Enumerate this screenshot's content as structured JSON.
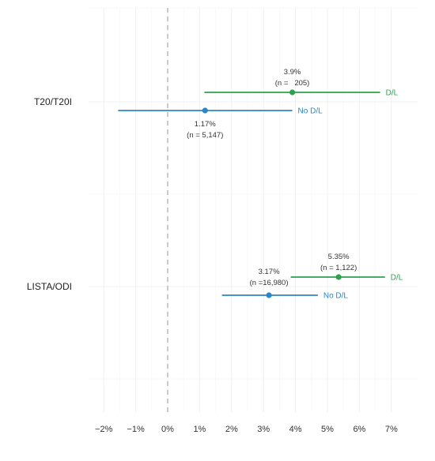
{
  "chart_data": {
    "type": "forest",
    "title": "",
    "xlabel": "",
    "ylabel": "",
    "xlim": [
      -0.025,
      0.079
    ],
    "x_ticks": [
      -0.02,
      -0.01,
      0,
      0.01,
      0.02,
      0.03,
      0.04,
      0.05,
      0.06,
      0.07
    ],
    "x_tick_labels": [
      "−2%",
      "−1%",
      "0%",
      "1%",
      "2%",
      "3%",
      "4%",
      "5%",
      "6%",
      "7%"
    ],
    "reference_line": 0,
    "grid": true,
    "categories": [
      "T20/T20I",
      "LISTA/ODI"
    ],
    "series": [
      {
        "name": "D/L",
        "color": "#2ca24d",
        "points": [
          {
            "category": "T20/T20I",
            "estimate": 0.039,
            "low": 0.0115,
            "high": 0.0665,
            "label_pct": "3.9%",
            "label_n": "(n =   205)"
          },
          {
            "category": "LISTA/ODI",
            "estimate": 0.0535,
            "low": 0.0385,
            "high": 0.068,
            "label_pct": "5.35%",
            "label_n": "(n = 1,122)"
          }
        ]
      },
      {
        "name": "No D/L",
        "color": "#2b86c5",
        "points": [
          {
            "category": "T20/T20I",
            "estimate": 0.0117,
            "low": -0.0155,
            "high": 0.039,
            "label_pct": "1.17%",
            "label_n": "(n = 5,147)"
          },
          {
            "category": "LISTA/ODI",
            "estimate": 0.0317,
            "low": 0.017,
            "high": 0.047,
            "label_pct": "3.17%",
            "label_n": "(n =16,980)"
          }
        ]
      }
    ]
  }
}
